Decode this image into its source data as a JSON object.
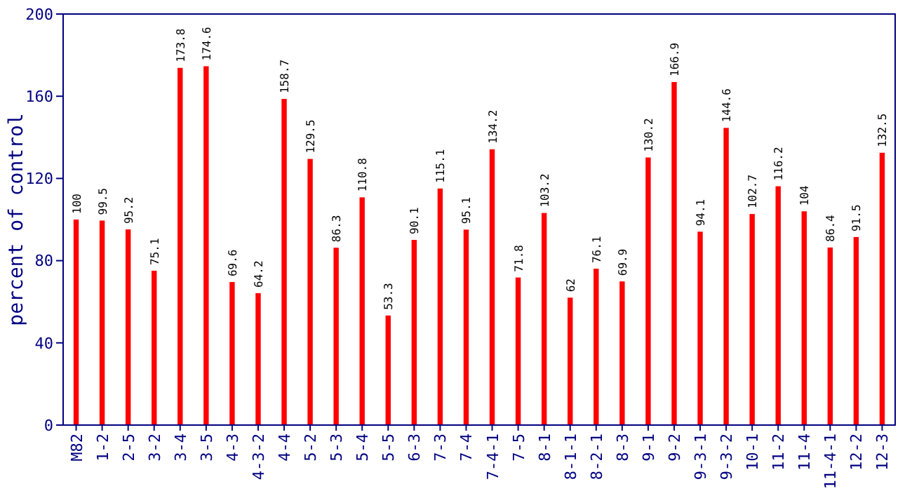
{
  "chart_data": {
    "type": "bar",
    "ylabel": "percent of control",
    "categories": [
      "M82",
      "1-2",
      "2-5",
      "3-2",
      "3-4",
      "3-5",
      "4-3",
      "4-3-2",
      "4-4",
      "5-2",
      "5-3",
      "5-4",
      "5-5",
      "6-3",
      "7-3",
      "7-4",
      "7-4-1",
      "7-5",
      "8-1",
      "8-1-1",
      "8-2-1",
      "8-3",
      "9-1",
      "9-2",
      "9-3-1",
      "9-3-2",
      "10-1",
      "11-2",
      "11-4",
      "11-4-1",
      "12-2",
      "12-3"
    ],
    "values": [
      100,
      99.5,
      95.2,
      75.1,
      173.8,
      174.6,
      69.6,
      64.2,
      158.7,
      129.5,
      86.3,
      110.8,
      53.3,
      90.1,
      115.1,
      95.1,
      134.2,
      71.8,
      103.2,
      62,
      76.1,
      69.9,
      130.2,
      166.9,
      94.1,
      144.6,
      102.7,
      116.2,
      104,
      86.4,
      91.5,
      132.5
    ],
    "color": "#ff0000",
    "ylim": [
      0,
      200
    ],
    "yticks": [
      0,
      40,
      80,
      120,
      160,
      200
    ],
    "data_labels": true
  }
}
